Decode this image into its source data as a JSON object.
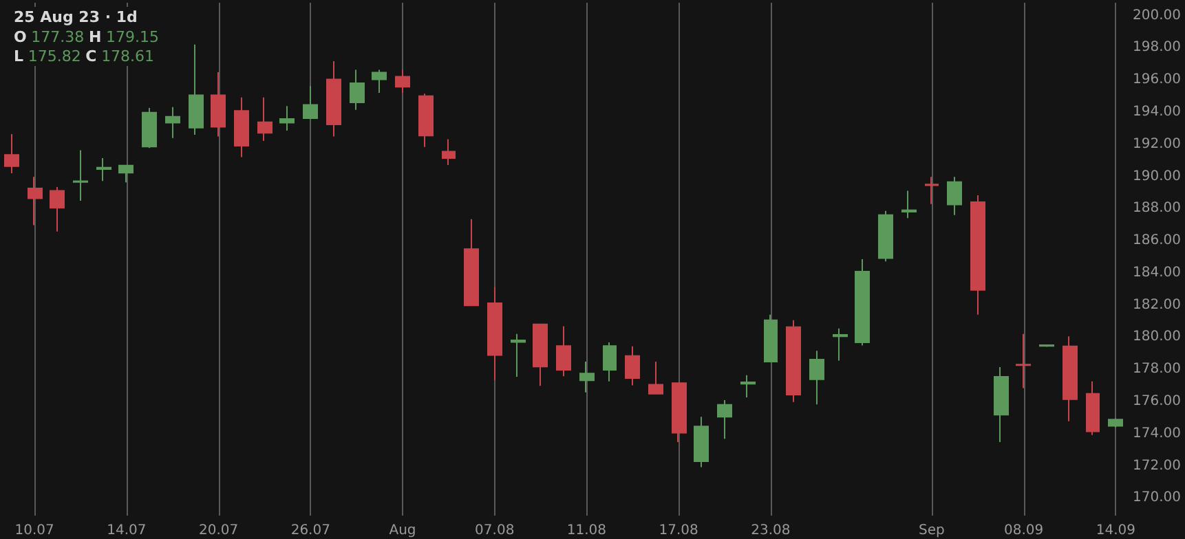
{
  "chart_data": {
    "type": "candlestick",
    "title": "25 Aug 23 · 1d",
    "annotations": [
      "O 177.38 H 179.15",
      "L 175.82 C 178.61"
    ],
    "categories": [
      null,
      "10.07",
      null,
      null,
      null,
      "14.07",
      null,
      null,
      null,
      "20.07",
      null,
      null,
      null,
      "26.07",
      null,
      null,
      null,
      "Aug",
      null,
      null,
      null,
      "07.08",
      null,
      null,
      null,
      "11.08",
      null,
      null,
      null,
      "17.08",
      null,
      null,
      null,
      "23.08",
      null,
      null,
      null,
      null,
      null,
      null,
      "Sep",
      null,
      null,
      null,
      "08.09",
      null,
      null,
      null,
      "14.09"
    ],
    "ohlc": [
      [
        191.34,
        192.63,
        190.2,
        190.63
      ],
      [
        189.25,
        189.97,
        186.97,
        188.63
      ],
      [
        189.11,
        189.34,
        186.57,
        188.05
      ],
      [
        189.65,
        191.63,
        188.48,
        189.7
      ],
      [
        190.45,
        191.14,
        189.71,
        190.55
      ],
      [
        190.23,
        190.68,
        189.63,
        190.68
      ],
      [
        191.85,
        194.26,
        191.77,
        193.97
      ],
      [
        193.34,
        194.31,
        192.39,
        193.71
      ],
      [
        193.03,
        198.2,
        192.59,
        195.05
      ],
      [
        195.05,
        196.48,
        192.48,
        193.08
      ],
      [
        194.08,
        194.91,
        191.2,
        191.91
      ],
      [
        193.37,
        194.91,
        192.2,
        192.71
      ],
      [
        193.34,
        194.37,
        192.85,
        193.57
      ],
      [
        193.62,
        195.62,
        193.57,
        194.45
      ],
      [
        196.03,
        197.17,
        192.48,
        193.23
      ],
      [
        194.6,
        196.63,
        194.14,
        195.8
      ],
      [
        196.03,
        196.63,
        195.2,
        196.46
      ],
      [
        196.2,
        196.63,
        195.2,
        195.57
      ],
      [
        195.0,
        195.14,
        191.83,
        192.54
      ],
      [
        191.54,
        192.31,
        190.71,
        191.14
      ],
      [
        185.48,
        187.34,
        181.97,
        181.97
      ],
      [
        182.11,
        183.11,
        177.34,
        178.88
      ],
      [
        179.7,
        180.2,
        177.54,
        179.8
      ],
      [
        180.8,
        180.8,
        176.97,
        178.17
      ],
      [
        179.45,
        180.68,
        177.57,
        177.97
      ],
      [
        177.31,
        178.48,
        176.57,
        177.74
      ],
      [
        177.97,
        179.68,
        177.25,
        179.45
      ],
      [
        178.83,
        179.43,
        177.0,
        177.45
      ],
      [
        177.05,
        178.48,
        176.48,
        176.48
      ],
      [
        177.14,
        177.14,
        173.48,
        174.05
      ],
      [
        172.28,
        175.05,
        171.91,
        174.45
      ],
      [
        175.05,
        176.08,
        173.68,
        175.8
      ],
      [
        177.1,
        177.63,
        176.25,
        177.2
      ],
      [
        178.48,
        181.4,
        178.48,
        181.05
      ],
      [
        180.63,
        181.05,
        175.97,
        176.43
      ],
      [
        177.38,
        179.15,
        175.82,
        178.61
      ],
      [
        180.05,
        180.54,
        178.54,
        180.15
      ],
      [
        179.68,
        184.85,
        179.48,
        184.08
      ],
      [
        184.91,
        187.85,
        184.71,
        187.6
      ],
      [
        187.8,
        189.11,
        187.4,
        187.9
      ],
      [
        189.5,
        189.97,
        188.28,
        189.45
      ],
      [
        188.25,
        189.97,
        187.6,
        189.65
      ],
      [
        188.4,
        188.83,
        181.4,
        182.94
      ],
      [
        175.17,
        178.14,
        173.48,
        177.54
      ],
      [
        178.3,
        180.2,
        176.83,
        178.25
      ],
      [
        179.45,
        179.55,
        179.4,
        179.5
      ],
      [
        179.43,
        180.05,
        174.77,
        176.14
      ],
      [
        176.48,
        177.25,
        173.91,
        174.14
      ],
      [
        174.48,
        174.95,
        174.4,
        174.88
      ]
    ],
    "colors": [
      "#c9434a",
      "#c9434a",
      "#c9434a",
      "#5b9a5b",
      "#5b9a5b",
      "#5b9a5b",
      "#5b9a5b",
      "#5b9a5b",
      "#5b9a5b",
      "#c9434a",
      "#c9434a",
      "#c9434a",
      "#5b9a5b",
      "#5b9a5b",
      "#c9434a",
      "#5b9a5b",
      "#5b9a5b",
      "#c9434a",
      "#c9434a",
      "#c9434a",
      "#c9434a",
      "#c9434a",
      "#5b9a5b",
      "#c9434a",
      "#c9434a",
      "#5b9a5b",
      "#5b9a5b",
      "#c9434a",
      "#c9434a",
      "#c9434a",
      "#5b9a5b",
      "#5b9a5b",
      "#5b9a5b",
      "#5b9a5b",
      "#c9434a",
      "#5b9a5b",
      "#5b9a5b",
      "#5b9a5b",
      "#5b9a5b",
      "#5b9a5b",
      "#c9434a",
      "#5b9a5b",
      "#c9434a",
      "#5b9a5b",
      "#c9434a",
      "#5b9a5b",
      "#c9434a",
      "#c9434a",
      "#5b9a5b"
    ],
    "ylim": [
      168.9,
      200.8
    ],
    "yticks": [
      {
        "value": 170,
        "label": "170.00"
      },
      {
        "value": 172,
        "label": "172.00"
      },
      {
        "value": 174,
        "label": "174.00"
      },
      {
        "value": 176,
        "label": "176.00"
      },
      {
        "value": 178,
        "label": "178.00"
      },
      {
        "value": 180,
        "label": "180.00"
      },
      {
        "value": 182,
        "label": "182.00"
      },
      {
        "value": 184,
        "label": "184.00"
      },
      {
        "value": 186,
        "label": "186.00"
      },
      {
        "value": 188,
        "label": "188.00"
      },
      {
        "value": 190,
        "label": "190.00"
      },
      {
        "value": 192,
        "label": "192.00"
      },
      {
        "value": 194,
        "label": "194.00"
      },
      {
        "value": 196,
        "label": "196.00"
      },
      {
        "value": 198,
        "label": "198.00"
      },
      {
        "value": 200,
        "label": "200.00"
      }
    ],
    "grid": "x"
  }
}
